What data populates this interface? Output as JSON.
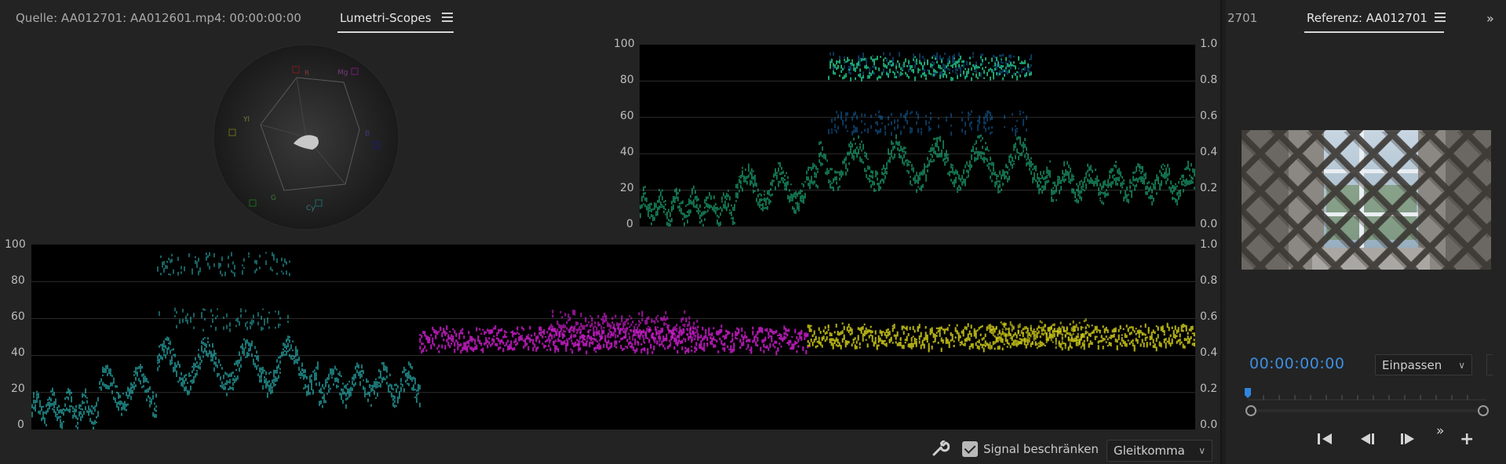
{
  "left_panel": {
    "source_tab": "Quelle: AA012701: AA012601.mp4: 00:00:00:00",
    "scopes_tab": "Lumetri-Scopes",
    "vectorscope": {
      "targets": [
        "R",
        "Mg",
        "B",
        "Cy",
        "G",
        "Yl"
      ]
    },
    "waveform_top": {
      "left_ticks": [
        "100",
        "80",
        "60",
        "40",
        "20",
        "0"
      ],
      "right_ticks": [
        "1.0",
        "0.8",
        "0.6",
        "0.4",
        "0.2",
        "0.0"
      ]
    },
    "parade": {
      "left_ticks": [
        "100",
        "80",
        "60",
        "40",
        "20",
        "0"
      ],
      "right_ticks": [
        "1.0",
        "0.8",
        "0.6",
        "0.4",
        "0.2",
        "0.0"
      ]
    },
    "bottom": {
      "signal_label": "Signal beschränken",
      "signal_checked": true,
      "mode": "Gleitkomma"
    }
  },
  "right_panel": {
    "cut_tab": "2701",
    "reference_tab": "Referenz: AA012701",
    "timecode": "00:00:00:00",
    "fit": "Einpassen"
  },
  "colors": {
    "timecode": "#3d8fe0",
    "cyan": "#2ec4c4",
    "magenta": "#d21fd2",
    "yellow": "#d6d21a",
    "green": "#22c88a"
  }
}
